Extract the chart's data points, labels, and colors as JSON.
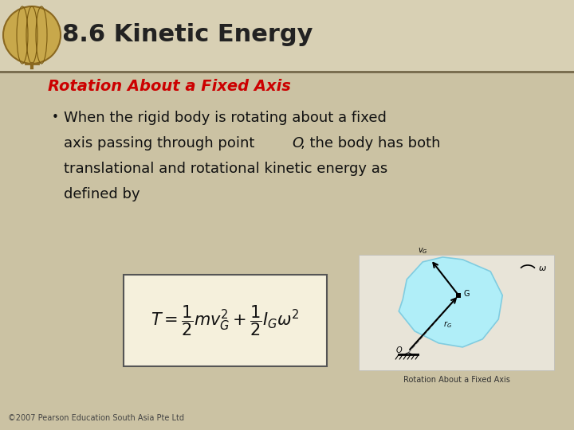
{
  "title": "8.6 Kinetic Energy",
  "subtitle": "Rotation About a Fixed Axis",
  "subtitle_color": "#CC0000",
  "bullet_line1": "When the rigid body is rotating about a fixed",
  "bullet_line2a": "axis passing through point ",
  "bullet_line2b": "O",
  "bullet_line2c": ", the body has both",
  "bullet_line3": "translational and rotational kinetic energy as",
  "bullet_line4": "defined by",
  "bg_main": "#cbc2a3",
  "bg_header": "#d8d0b4",
  "header_line_color": "#7a6e50",
  "formula_bg": "#f5f0dc",
  "formula_edge": "#555555",
  "copyright": "©2007 Pearson Education South Asia Pte Ltd",
  "title_fontsize": 22,
  "subtitle_fontsize": 14,
  "body_fontsize": 13,
  "caption_fontsize": 7,
  "copyright_fontsize": 7
}
